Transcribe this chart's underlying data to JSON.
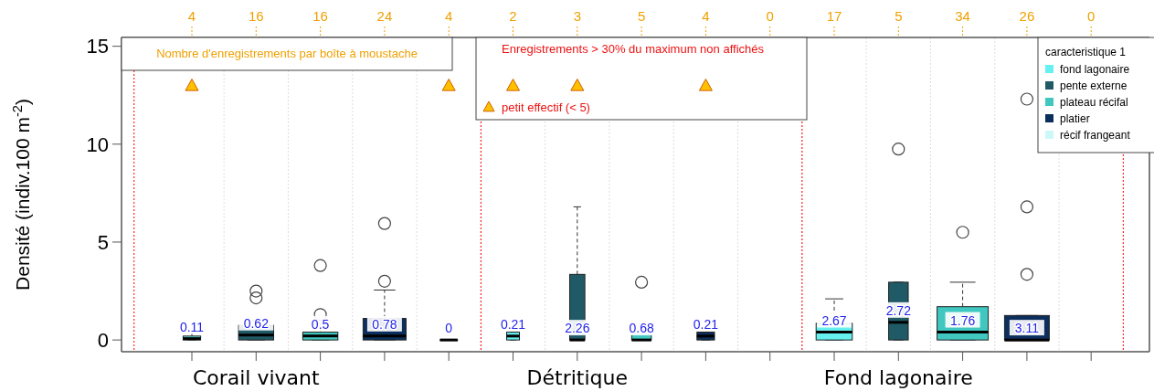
{
  "chart_data": {
    "type": "box",
    "ylabel": "Densité  (indiv.100 m$^{-2}$)",
    "legend_title": "caracteristique 1",
    "legend": "top right",
    "grid": "x",
    "categories": [
      null,
      "Corail vivant",
      null,
      null,
      null,
      null,
      "Détritique",
      null,
      null,
      null,
      null,
      "Fond lagonaire",
      null,
      null,
      null
    ],
    "ylim": [
      -0.6,
      15.45
    ],
    "yticks": [
      0,
      5,
      10,
      15
    ],
    "annotations": [
      "Nombre d'enregistrements par boîte à moustache",
      "Enregistrements > 30% du maximum non affichés",
      "4",
      "16",
      "16",
      "24",
      "4",
      "2",
      "3",
      "5",
      "4",
      "0",
      "17",
      "5",
      "34",
      "26",
      "0"
    ],
    "series": [
      {
        "name": "fond lagonaire",
        "color": "#66f0f0",
        "boxes": [
          {
            "low": 0,
            "q1": 0,
            "median": 0.07,
            "q3": 0.2,
            "high": 0.4
          },
          null,
          null,
          null,
          null,
          {
            "low": 0,
            "q1": 0,
            "median": 0.2,
            "q3": 0.4,
            "high": 0.4
          },
          null,
          null,
          null,
          null,
          {
            "low": 0,
            "q1": 0,
            "median": 0.4,
            "q3": 0.85,
            "high": 2.1
          },
          null,
          null,
          null,
          null
        ],
        "value_labels": [
          "0.11",
          null,
          null,
          null,
          null,
          "0.21",
          null,
          null,
          null,
          null,
          "2.67",
          null,
          null,
          null,
          null
        ]
      },
      {
        "name": "pente externe",
        "color": "#1f5a66",
        "boxes": [
          null,
          {
            "low": 0,
            "q1": 0,
            "median": 0.25,
            "q3": 0.75,
            "high": 1.0,
            "outliers": [
              2.15,
              2.5
            ]
          },
          null,
          null,
          null,
          null,
          {
            "low": 0,
            "q1": 0,
            "median": 0,
            "q3": 3.35,
            "high": 6.8
          },
          null,
          null,
          null,
          null,
          {
            "low": 0,
            "q1": 0,
            "median": 0.9,
            "q3": 2.95,
            "high": 2.95,
            "outliers": [
              9.75
            ]
          },
          null,
          null,
          null
        ],
        "value_labels": [
          null,
          "0.62",
          null,
          null,
          null,
          null,
          "2.26",
          null,
          null,
          null,
          null,
          "2.72",
          null,
          null,
          null
        ]
      },
      {
        "name": "plateau récifal",
        "color": "#40c8c0",
        "boxes": [
          null,
          null,
          {
            "low": 0,
            "q1": 0,
            "median": 0.2,
            "q3": 0.4,
            "high": 0.85,
            "outliers": [
              1.3,
              3.8
            ]
          },
          null,
          null,
          null,
          null,
          {
            "low": 0,
            "q1": 0,
            "median": 0,
            "q3": 0.4,
            "high": 0.4,
            "outliers": [
              2.95
            ]
          },
          null,
          null,
          null,
          null,
          {
            "low": 0,
            "q1": 0,
            "median": 0.4,
            "q3": 1.7,
            "high": 2.95,
            "outliers": [
              5.5
            ]
          },
          null,
          null
        ],
        "value_labels": [
          null,
          null,
          "0.5",
          null,
          null,
          null,
          null,
          "0.68",
          null,
          null,
          null,
          null,
          "1.76",
          null,
          null
        ]
      },
      {
        "name": "platier",
        "color": "#0c2e5c",
        "boxes": [
          null,
          null,
          null,
          {
            "low": 0,
            "q1": 0,
            "median": 0.2,
            "q3": 1.1,
            "high": 2.55,
            "outliers": [
              3.0,
              5.95
            ]
          },
          null,
          null,
          null,
          null,
          {
            "low": 0,
            "q1": 0,
            "median": 0.2,
            "q3": 0.4,
            "high": 0.4
          },
          null,
          null,
          null,
          null,
          {
            "low": 0,
            "q1": 0,
            "median": 0,
            "q3": 1.25,
            "high": 1.25,
            "outliers": [
              3.35,
              6.8,
              12.3
            ]
          },
          null
        ],
        "value_labels": [
          null,
          null,
          null,
          "0.78",
          null,
          null,
          null,
          null,
          "0.21",
          null,
          null,
          null,
          null,
          "3.11",
          null
        ]
      },
      {
        "name": "récif frangeant",
        "color": "#ccf8f8",
        "boxes": [
          null,
          null,
          null,
          null,
          {
            "low": 0,
            "q1": 0,
            "median": 0,
            "q3": 0,
            "high": 0
          },
          null,
          null,
          null,
          null,
          null,
          null,
          null,
          null,
          null,
          null
        ],
        "value_labels": [
          null,
          null,
          null,
          null,
          "0",
          null,
          null,
          null,
          null,
          null,
          null,
          null,
          null,
          null,
          null
        ]
      },
      {
        "type": "scatter",
        "name": "petit effectif (< 5)",
        "color": "#ffc000",
        "marker": "triangle",
        "values": [
          13,
          null,
          null,
          null,
          13,
          13,
          13,
          null,
          13,
          null,
          null,
          null,
          null,
          null,
          null
        ]
      }
    ]
  }
}
